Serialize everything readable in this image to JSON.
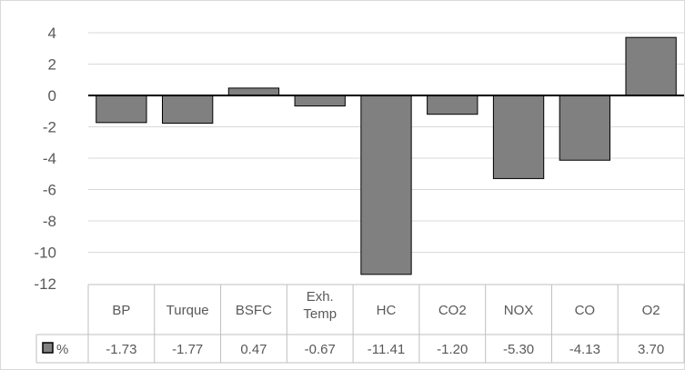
{
  "chart_data": {
    "type": "bar",
    "categories": [
      "BP",
      "Turque",
      "BSFC",
      "Exh.\nTemp",
      "HC",
      "CO2",
      "NOX",
      "CO",
      "O2"
    ],
    "series": [
      {
        "name": "%",
        "values": [
          -1.73,
          -1.77,
          0.47,
          -0.67,
          -11.41,
          -1.2,
          -5.3,
          -4.13,
          3.7
        ],
        "value_labels": [
          "-1.73",
          "-1.77",
          "0.47",
          "-0.67",
          "-11.41",
          "-1.20",
          "-5.30",
          "-4.13",
          "3.70"
        ],
        "color": "#808080"
      }
    ],
    "y_ticks": [
      "4",
      "2",
      "0",
      "-2",
      "-4",
      "-6",
      "-8",
      "-10",
      "-12"
    ],
    "ylim": [
      -12,
      4
    ],
    "grid": true,
    "legend": "data-table",
    "colors": {
      "bar": "#808080",
      "bar_stroke": "#000000",
      "grid": "#d9d9d9",
      "table_border": "#bfbfbf"
    }
  }
}
